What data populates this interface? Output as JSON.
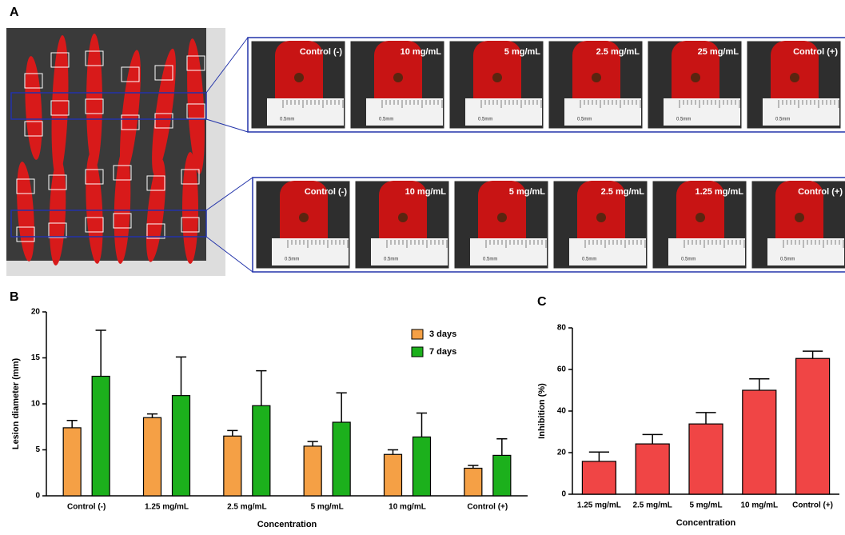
{
  "panel_labels": [
    "A",
    "B",
    "C"
  ],
  "photos": {
    "top_row": [
      "Control (-)",
      "10 mg/mL",
      "5 mg/mL",
      "2.5 mg/mL",
      "25 mg/mL",
      "Control (+)"
    ],
    "bottom_row": [
      "Control (-)",
      "10 mg/mL",
      "5 mg/mL",
      "2.5 mg/mL",
      "1.25 mg/mL",
      "Control (+)"
    ],
    "ruler_label": "0.5mm"
  },
  "chart_data": [
    {
      "type": "bar",
      "x_label": "Concentration",
      "y_label": "Lesion diameter (mm)",
      "categories": [
        "Control (-)",
        "1.25 mg/mL",
        "2.5 mg/mL",
        "5 mg/mL",
        "10 mg/mL",
        "Control (+)"
      ],
      "series": [
        {
          "name": "3 days",
          "color": "#f5a045",
          "values": [
            7.4,
            8.5,
            6.5,
            5.4,
            4.5,
            3.0
          ],
          "errors": [
            0.8,
            0.4,
            0.6,
            0.5,
            0.5,
            0.3
          ]
        },
        {
          "name": "7 days",
          "color": "#1cb01c",
          "values": [
            13.0,
            10.9,
            9.8,
            8.0,
            6.4,
            4.4
          ],
          "errors": [
            5.0,
            4.2,
            3.8,
            3.2,
            2.6,
            1.8
          ]
        }
      ],
      "ylim": [
        0,
        20
      ],
      "yticks": [
        0,
        5,
        10,
        15,
        20
      ],
      "legend": "top-right"
    },
    {
      "type": "bar",
      "x_label": "Concentration",
      "y_label": "Inhibition (%)",
      "categories": [
        "1.25 mg/mL",
        "2.5 mg/mL",
        "5 mg/mL",
        "10 mg/mL",
        "Control (+)"
      ],
      "color": "#f04545",
      "values": [
        15.8,
        24.2,
        33.8,
        50.0,
        65.3
      ],
      "errors": [
        4.5,
        4.5,
        5.5,
        5.5,
        3.5
      ],
      "ylim": [
        0,
        80
      ],
      "yticks": [
        0,
        20,
        40,
        60,
        80
      ]
    }
  ]
}
